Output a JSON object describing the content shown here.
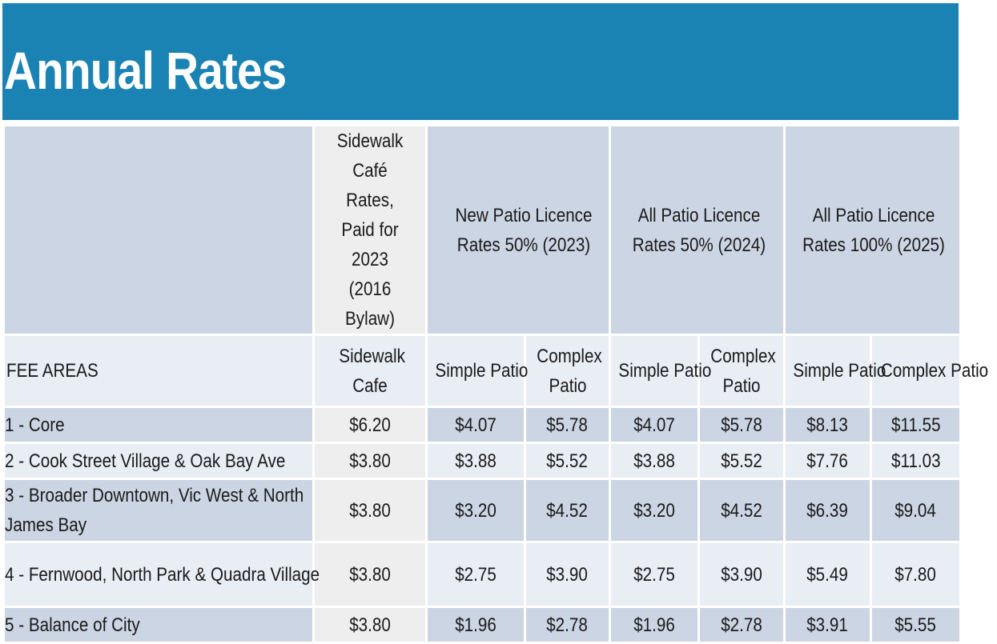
{
  "title": "Annual Rates",
  "colors": {
    "title_bar": "#1a83b4",
    "header_blue": "#cbd5e3",
    "row_light": "#e9edf4",
    "sidewalk_gray": "#eeeeee"
  },
  "header": {
    "sidewalk_group": "Sidewalk Café Rates, Paid for 2023 (2016 Bylaw)",
    "groups": [
      "New Patio Licence Rates 50% (2023)",
      "All Patio Licence Rates 50% (2024)",
      "All Patio Licence Rates 100% (2025)"
    ],
    "fee_areas_label": "FEE AREAS",
    "sidewalk_cafe_label": "Sidewalk Cafe",
    "simple_patio_label": "Simple Patio",
    "complex_patio_label": "Complex Patio"
  },
  "rows": [
    {
      "area": "1 - Core",
      "values": [
        "$6.20",
        "$4.07",
        "$5.78",
        "$4.07",
        "$5.78",
        "$8.13",
        "$11.55"
      ]
    },
    {
      "area": "2 - Cook Street Village & Oak Bay Ave",
      "values": [
        "$3.80",
        "$3.88",
        "$5.52",
        "$3.88",
        "$5.52",
        "$7.76",
        "$11.03"
      ]
    },
    {
      "area": "3 - Broader Downtown, Vic West & North James Bay",
      "values": [
        "$3.80",
        "$3.20",
        "$4.52",
        "$3.20",
        "$4.52",
        "$6.39",
        "$9.04"
      ]
    },
    {
      "area": "4 - Fernwood, North Park & Quadra Village",
      "values": [
        "$3.80",
        "$2.75",
        "$3.90",
        "$2.75",
        "$3.90",
        "$5.49",
        "$7.80"
      ]
    },
    {
      "area": "5 - Balance of City",
      "values": [
        "$3.80",
        "$1.96",
        "$2.78",
        "$1.96",
        "$2.78",
        "$3.91",
        "$5.55"
      ]
    }
  ]
}
